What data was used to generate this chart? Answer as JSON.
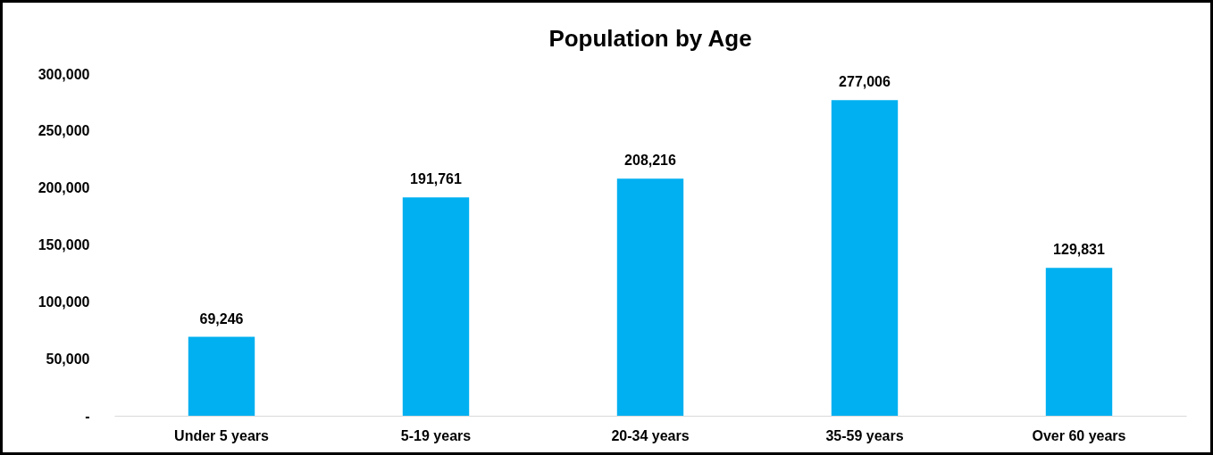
{
  "chart_data": {
    "type": "bar",
    "title": "Population by Age",
    "categories": [
      "Under 5 years",
      "5-19 years",
      "20-34 years",
      "35-59 years",
      "Over 60 years"
    ],
    "values": [
      69246,
      191761,
      208216,
      277006,
      129831
    ],
    "color": "#00b0f0",
    "ylim": [
      0,
      300000
    ],
    "yticks": [
      {
        "value": 0,
        "label": "-"
      },
      {
        "value": 50000,
        "label": "50,000"
      },
      {
        "value": 100000,
        "label": "100,000"
      },
      {
        "value": 150000,
        "label": "150,000"
      },
      {
        "value": 200000,
        "label": "200,000"
      },
      {
        "value": 250000,
        "label": "250,000"
      },
      {
        "value": 300000,
        "label": "300,000"
      }
    ],
    "value_labels": [
      "69,246",
      "191,761",
      "208,216",
      "277,006",
      "129,831"
    ],
    "grid": false
  }
}
